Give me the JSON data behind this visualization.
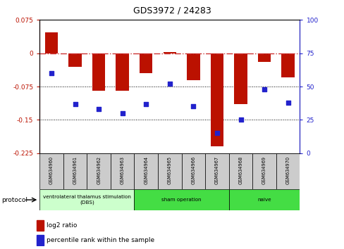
{
  "title": "GDS3972 / 24283",
  "samples": [
    "GSM634960",
    "GSM634961",
    "GSM634962",
    "GSM634963",
    "GSM634964",
    "GSM634965",
    "GSM634966",
    "GSM634967",
    "GSM634968",
    "GSM634969",
    "GSM634970"
  ],
  "log2_ratio": [
    0.047,
    -0.03,
    -0.085,
    -0.085,
    -0.045,
    0.003,
    -0.06,
    -0.21,
    -0.115,
    -0.02,
    -0.055
  ],
  "percentile_rank": [
    60,
    37,
    33,
    30,
    37,
    52,
    35,
    15,
    25,
    48,
    38
  ],
  "ylim_left": [
    -0.225,
    0.075
  ],
  "ylim_right": [
    0,
    100
  ],
  "yticks_left": [
    0.075,
    0,
    -0.075,
    -0.15,
    -0.225
  ],
  "yticks_right": [
    100,
    75,
    50,
    25,
    0
  ],
  "hlines": [
    -0.075,
    -0.15
  ],
  "bar_color": "#bb1100",
  "point_color": "#2222cc",
  "dashed_line_color": "#cc3333",
  "proto_groups": [
    {
      "start": 0,
      "end": 3,
      "label": "ventrolateral thalamus stimulation\n(DBS)",
      "color": "#ccffcc"
    },
    {
      "start": 4,
      "end": 7,
      "label": "sham operation",
      "color": "#44dd44"
    },
    {
      "start": 8,
      "end": 10,
      "label": "naive",
      "color": "#44dd44"
    }
  ],
  "legend_items": [
    {
      "label": "log2 ratio",
      "color": "#bb1100"
    },
    {
      "label": "percentile rank within the sample",
      "color": "#2222cc"
    }
  ],
  "protocol_label": "protocol",
  "bar_width": 0.55
}
